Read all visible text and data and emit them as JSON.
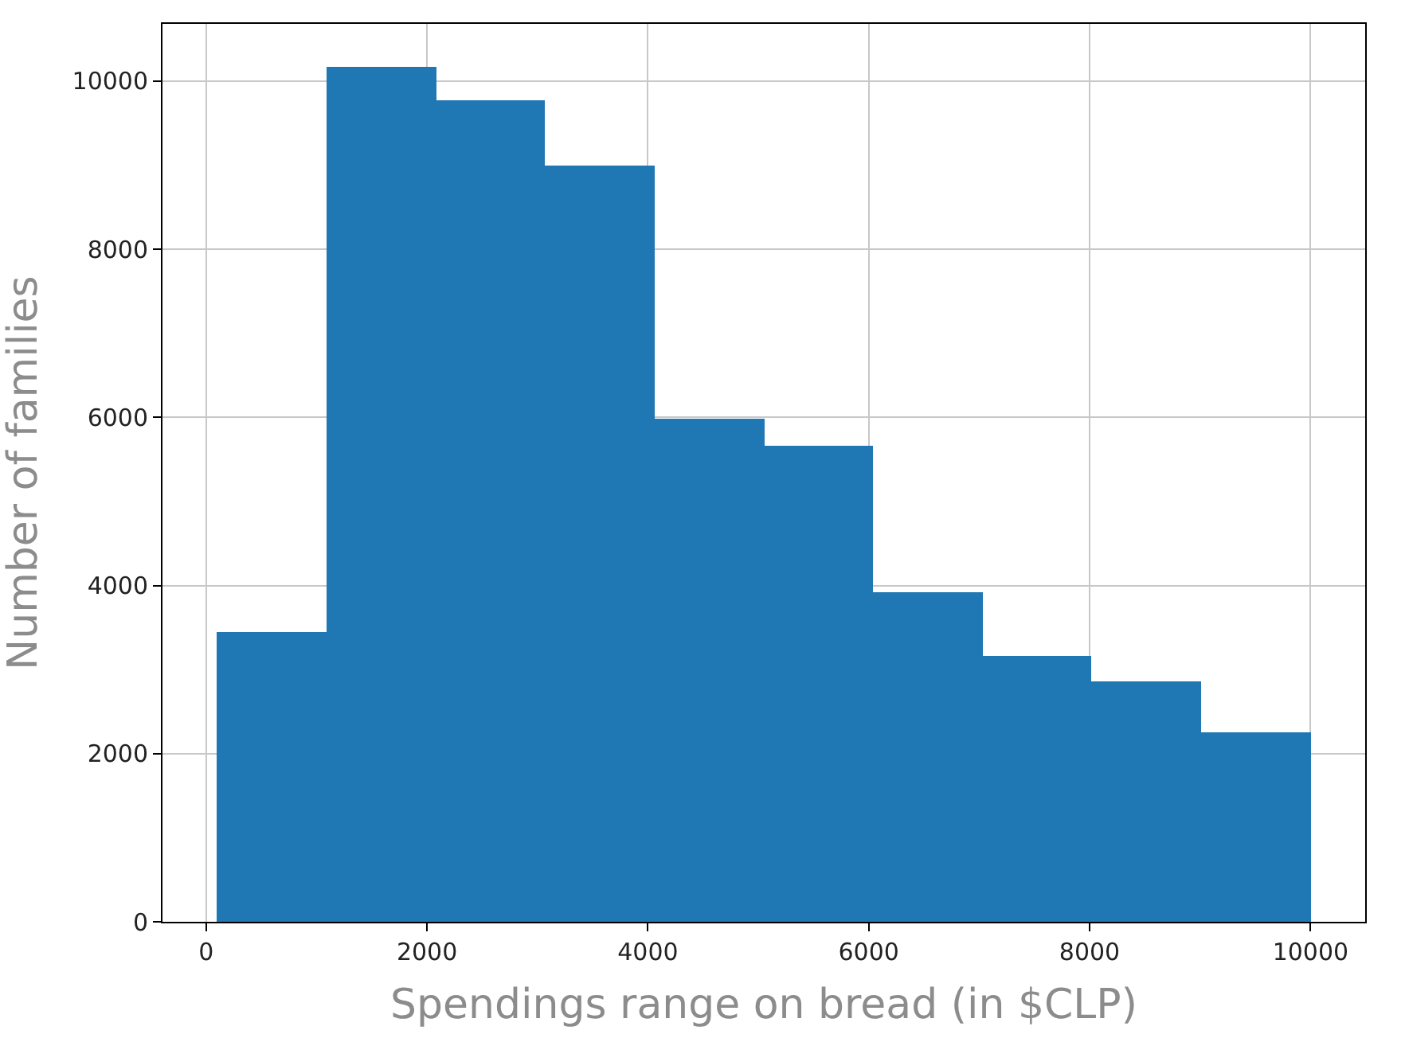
{
  "chart_data": {
    "type": "histogram",
    "xlabel": "Spendings range on bread (in $CLP)",
    "ylabel": "Number of families",
    "bins": [
      100,
      1090,
      2080,
      3070,
      4060,
      5050,
      6040,
      7030,
      8020,
      9010,
      10000
    ],
    "values": [
      3440,
      10170,
      9770,
      8990,
      5980,
      5670,
      3920,
      3170,
      2860,
      2260
    ],
    "color": "#1f77b4",
    "xlim": [
      -395,
      10495
    ],
    "xticks": [
      0,
      2000,
      4000,
      6000,
      8000,
      10000
    ],
    "ylim": [
      0,
      10680
    ],
    "yticks": [
      0,
      2000,
      4000,
      6000,
      8000,
      10000
    ],
    "grid": true
  }
}
